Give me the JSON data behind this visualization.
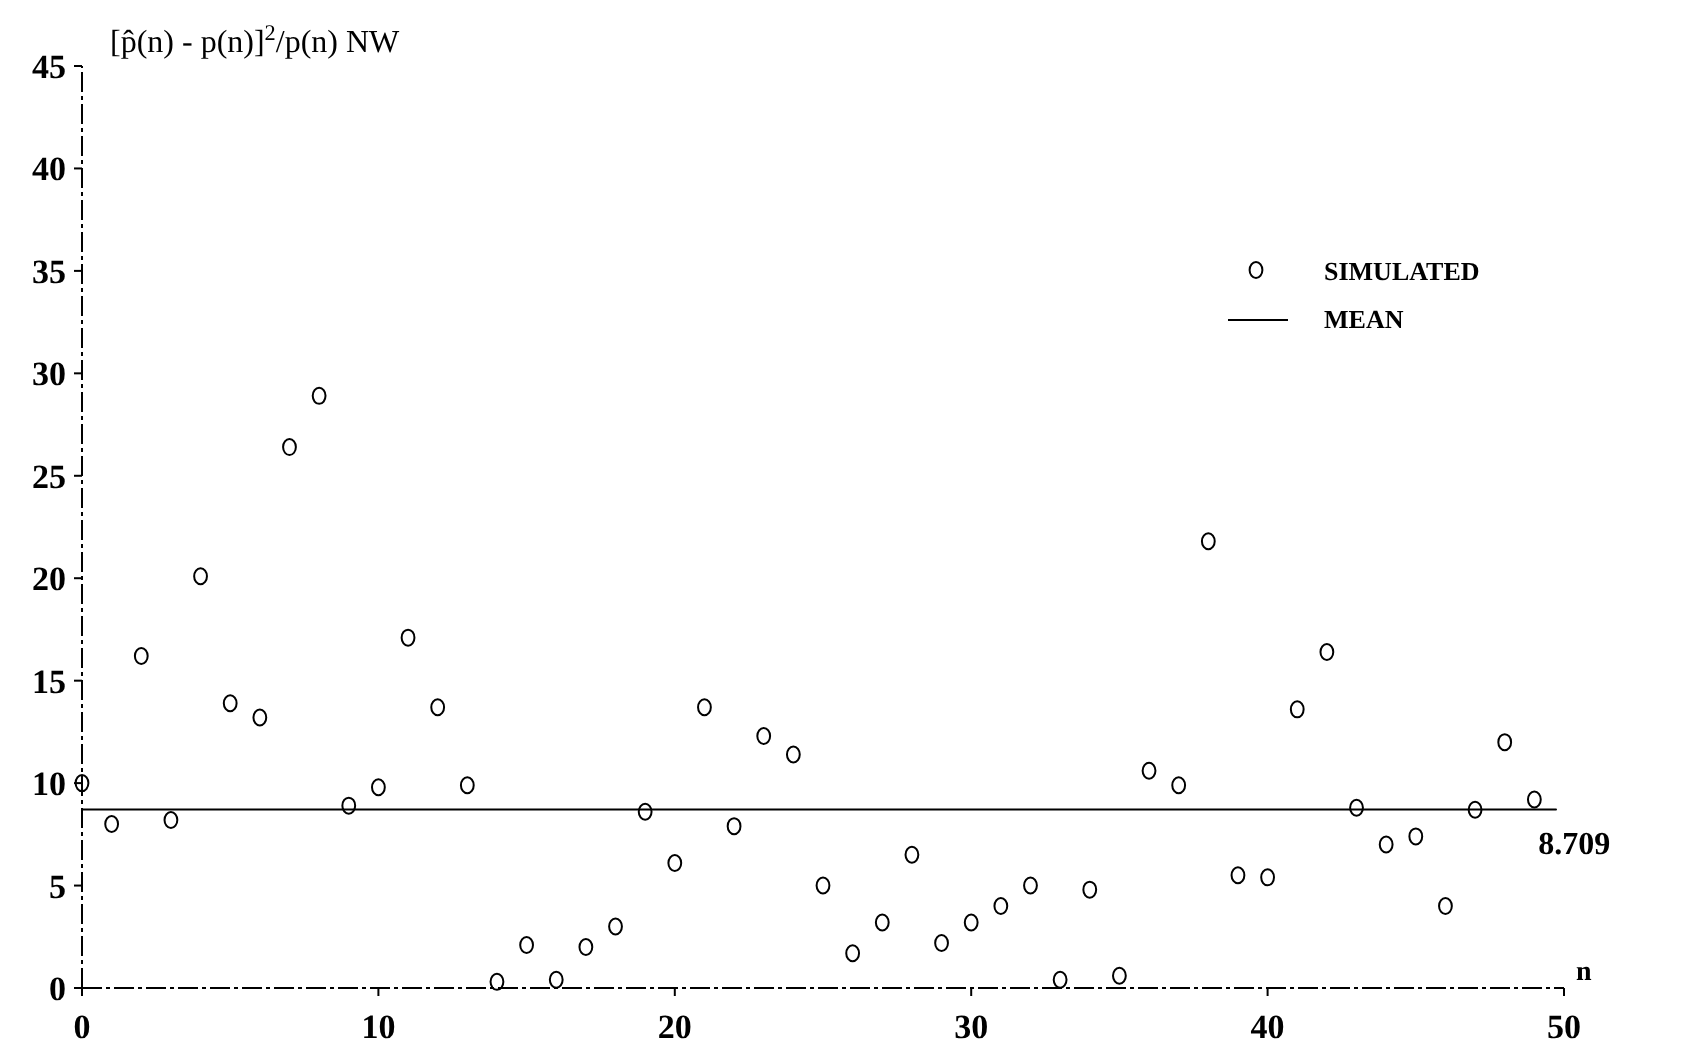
{
  "chart_data": {
    "type": "scatter",
    "ylabel": "[p̂(n) - p(n)]$^{2}$/p(n) NW",
    "xlabel": "n",
    "x": [
      0,
      1,
      2,
      3,
      4,
      5,
      6,
      7,
      8,
      9,
      10,
      11,
      12,
      13,
      14,
      15,
      16,
      17,
      18,
      19,
      20,
      21,
      22,
      23,
      24,
      25,
      26,
      27,
      28,
      29,
      30,
      31,
      32,
      33,
      34,
      35,
      36,
      37,
      38,
      39,
      40,
      41,
      42,
      43,
      44,
      45,
      46,
      47,
      48,
      49
    ],
    "series": [
      {
        "name": "SIMULATED",
        "color": "#000000",
        "values": [
          10.0,
          8.0,
          16.2,
          8.2,
          20.1,
          13.9,
          13.2,
          26.4,
          28.9,
          8.9,
          9.8,
          17.1,
          13.7,
          9.9,
          0.3,
          2.1,
          0.4,
          2.0,
          3.0,
          8.6,
          6.1,
          13.7,
          7.9,
          12.3,
          11.4,
          5.0,
          1.7,
          3.2,
          6.5,
          2.2,
          3.2,
          4.0,
          5.0,
          0.4,
          4.8,
          0.6,
          10.6,
          9.9,
          21.8,
          5.5,
          5.4,
          13.6,
          16.4,
          8.8,
          7.0,
          7.4,
          4.0,
          8.7,
          12.0,
          9.2
        ]
      }
    ],
    "ref_lines": [
      {
        "axis": "y",
        "value": 8.709,
        "label": "MEAN",
        "color": "#000000",
        "line_style": "solid"
      }
    ],
    "annotations": [
      {
        "text": "8.709",
        "x": 49,
        "y": 8.709
      }
    ],
    "xlim": [
      0,
      50
    ],
    "ylim": [
      0,
      45
    ],
    "xticks": [
      0,
      10,
      20,
      30,
      40,
      50
    ],
    "yticks": [
      0,
      5,
      10,
      15,
      20,
      25,
      30,
      35,
      40,
      45
    ],
    "marker": "circle",
    "legend": "top right",
    "grid": false
  }
}
